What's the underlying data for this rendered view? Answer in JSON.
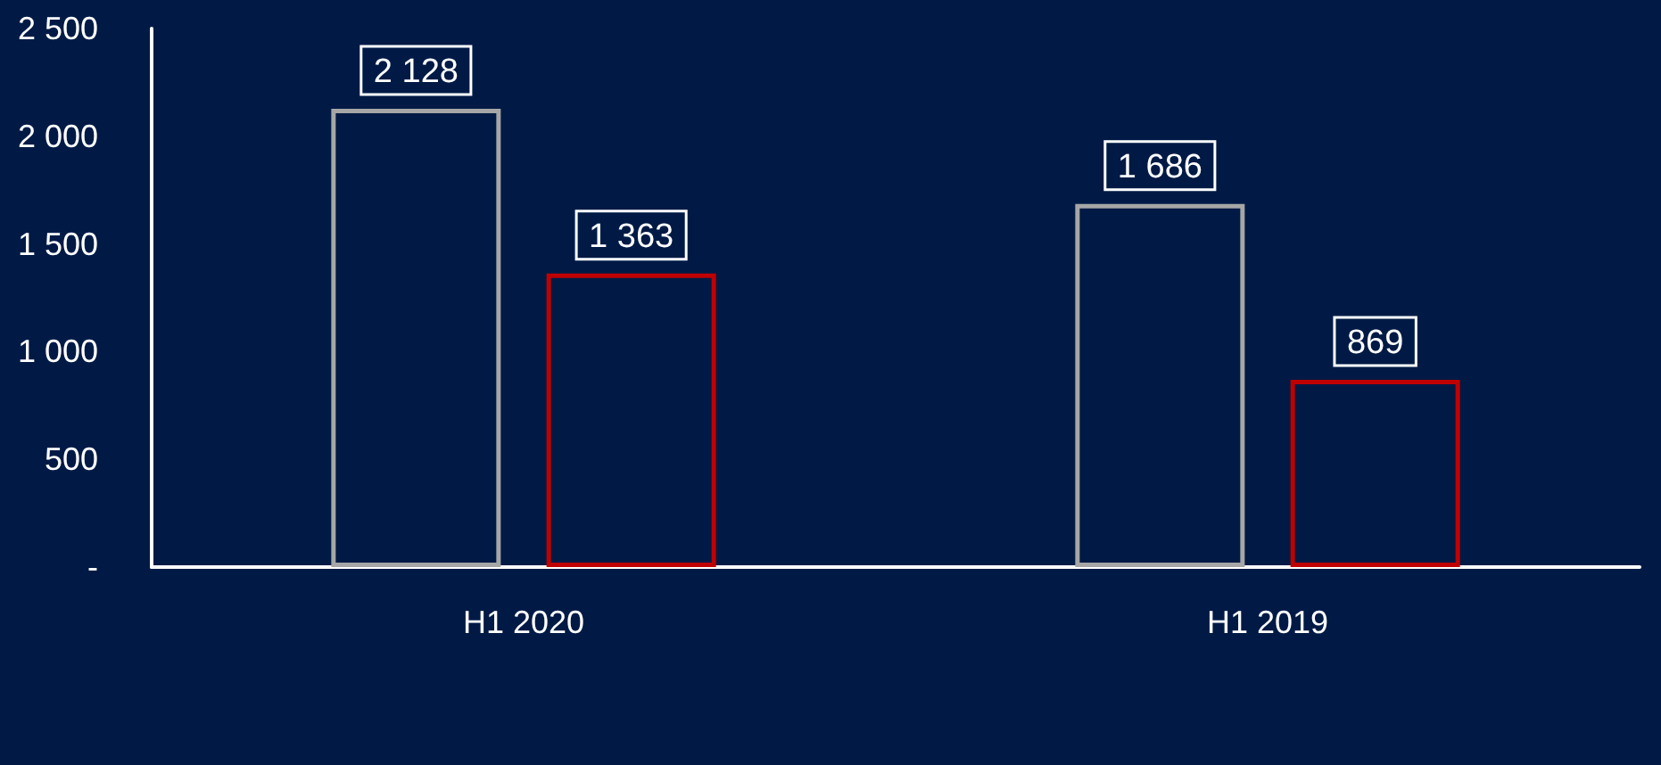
{
  "chart_data": {
    "type": "bar",
    "categories": [
      "H1 2020",
      "H1 2019"
    ],
    "series": [
      {
        "color": "#a6a6a6",
        "values": [
          2128,
          1686
        ],
        "value_labels": [
          "2 128",
          "1 686"
        ]
      },
      {
        "color": "#c00000",
        "values": [
          1363,
          869
        ],
        "value_labels": [
          "1 363",
          "869"
        ]
      }
    ],
    "ylim": [
      0,
      2500
    ],
    "yticks": [
      {
        "value": 0,
        "label": "-"
      },
      {
        "value": 500,
        "label": "500"
      },
      {
        "value": 1000,
        "label": "1 000"
      },
      {
        "value": 1500,
        "label": "1 500"
      },
      {
        "value": 2000,
        "label": "2 000"
      },
      {
        "value": 2500,
        "label": "2 500"
      }
    ],
    "grid": false
  }
}
